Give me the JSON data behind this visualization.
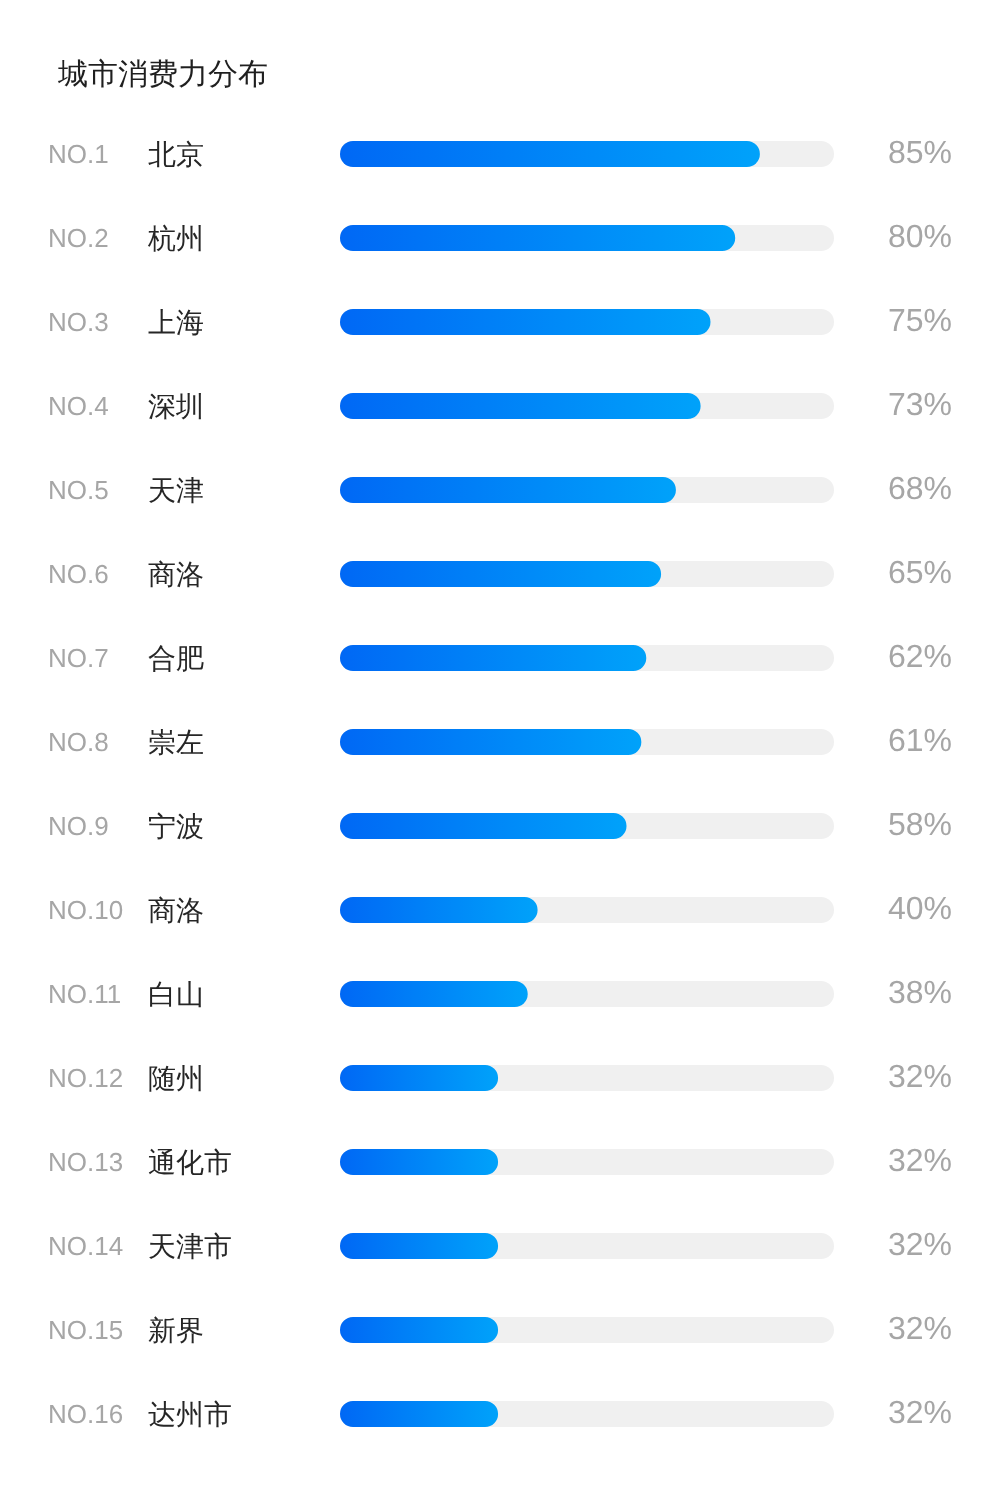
{
  "chart_data": {
    "type": "bar",
    "orientation": "horizontal",
    "title": "城市消费力分布",
    "categories": [
      "NO.1 北京",
      "NO.2 杭州",
      "NO.3 上海",
      "NO.4 深圳",
      "NO.5 天津",
      "NO.6 商洛",
      "NO.7 合肥",
      "NO.8 崇左",
      "NO.9 宁波",
      "NO.10 商洛",
      "NO.11 白山",
      "NO.12 随州",
      "NO.13 通化市",
      "NO.14 天津市",
      "NO.15 新界",
      "NO.16 达州市"
    ],
    "values": [
      85,
      80,
      75,
      73,
      68,
      65,
      62,
      61,
      58,
      40,
      38,
      32,
      32,
      32,
      32,
      32
    ],
    "value_labels": [
      "85%",
      "80%",
      "75%",
      "73%",
      "68%",
      "65%",
      "62%",
      "61%",
      "58%",
      "40%",
      "38%",
      "32%",
      "32%",
      "32%",
      "32%",
      "32%"
    ],
    "color": "#0385f7",
    "xlim": [
      0,
      100
    ],
    "tick_labels": "y",
    "grid": false
  }
}
